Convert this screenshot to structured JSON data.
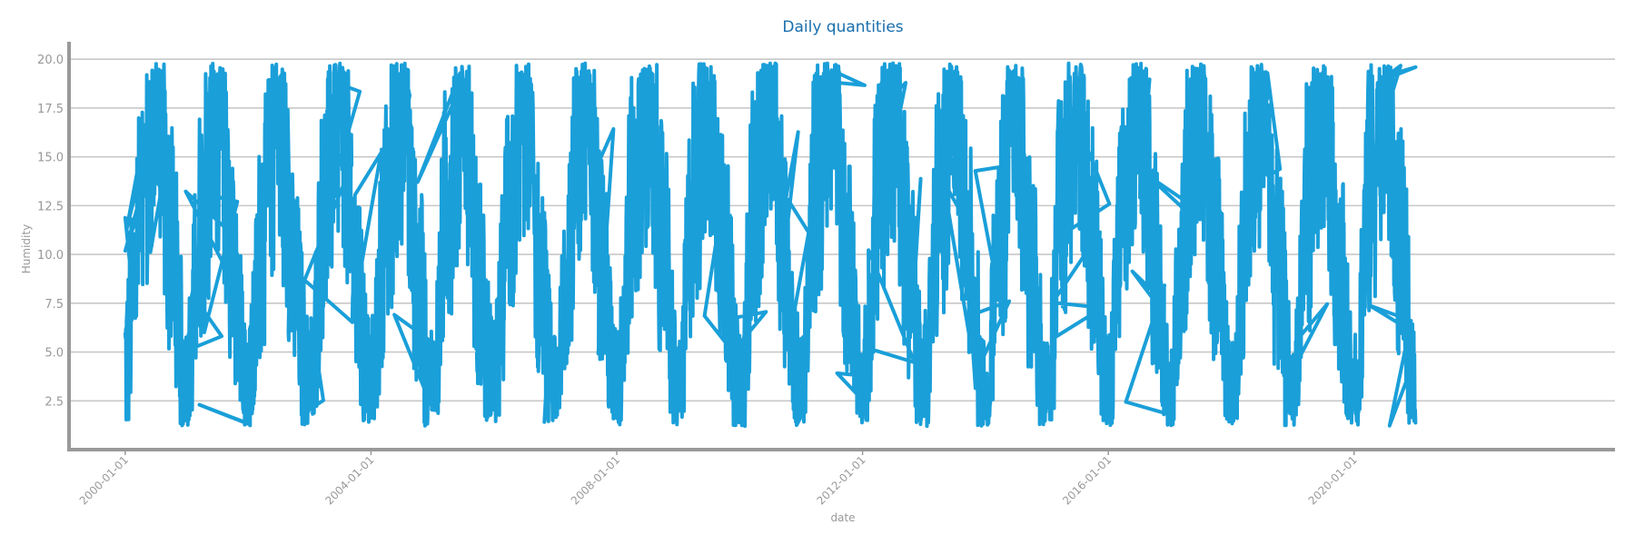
{
  "chart_data": {
    "type": "line",
    "title": "Daily quantities",
    "xlabel": "date",
    "ylabel": "Humidity",
    "xlim": [
      "1999-02-01",
      "2024-03-31"
    ],
    "ylim": [
      0,
      20.8
    ],
    "y_ticks": [
      2.5,
      5.0,
      7.5,
      10.0,
      12.5,
      15.0,
      17.5,
      20.0
    ],
    "y_tick_labels": [
      "2.5",
      "5.0",
      "7.5",
      "10.0",
      "12.5",
      "15.0",
      "17.5",
      "20.0"
    ],
    "x_ticks": [
      "2000-01-01",
      "2004-01-01",
      "2008-01-01",
      "2012-01-01",
      "2016-01-01",
      "2020-01-01"
    ],
    "x_tick_labels": [
      "2000-01-01",
      "2004-01-01",
      "2008-01-01",
      "2012-01-01",
      "2016-01-01",
      "2020-01-01"
    ],
    "grid": "horizontal",
    "data_range": [
      "2000-01-01",
      "2021-01-01"
    ],
    "series": [
      {
        "values_summary": "dense daily series with annual cycle, peaks 17-19.7 mid-year, troughs 1.5-4 near year boundaries",
        "x": [
          "2000-01-01",
          "2000-04-01",
          "2000-07-01",
          "2000-10-01",
          "2001-01-01",
          "2001-04-01",
          "2001-07-01",
          "2001-10-01",
          "2002-01-01",
          "2002-04-01",
          "2002-07-01",
          "2002-10-01",
          "2003-01-01",
          "2003-04-01",
          "2003-07-01",
          "2003-10-01",
          "2004-01-01",
          "2004-04-01",
          "2004-07-01",
          "2004-10-01",
          "2005-01-01",
          "2005-04-01",
          "2005-07-01",
          "2005-10-01",
          "2006-01-01",
          "2006-04-01",
          "2006-07-01",
          "2006-10-01",
          "2007-01-01",
          "2007-04-01",
          "2007-07-01",
          "2007-10-01",
          "2008-01-01",
          "2008-04-01",
          "2008-07-01",
          "2008-10-01",
          "2009-01-01",
          "2009-04-01",
          "2009-07-01",
          "2009-10-01",
          "2010-01-01",
          "2010-04-01",
          "2010-07-01",
          "2010-10-01",
          "2011-01-01",
          "2011-04-01",
          "2011-07-01",
          "2011-10-01",
          "2012-01-01",
          "2012-04-01",
          "2012-07-01",
          "2012-10-01",
          "2013-01-01",
          "2013-04-01",
          "2013-07-01",
          "2013-10-01",
          "2014-01-01",
          "2014-04-01",
          "2014-07-01",
          "2014-10-01",
          "2015-01-01",
          "2015-04-01",
          "2015-07-01",
          "2015-10-01",
          "2016-01-01",
          "2016-04-01",
          "2016-07-01",
          "2016-10-01",
          "2017-01-01",
          "2017-04-01",
          "2017-07-01",
          "2017-10-01",
          "2018-01-01",
          "2018-04-01",
          "2018-07-01",
          "2018-10-01",
          "2019-01-01",
          "2019-04-01",
          "2019-07-01",
          "2019-10-01",
          "2020-01-01",
          "2020-04-01",
          "2020-07-01",
          "2020-10-01",
          "2021-01-01"
        ],
        "y": [
          4.5,
          11.5,
          17.0,
          10.5,
          3.0,
          12.0,
          18.2,
          9.0,
          2.5,
          11.5,
          17.8,
          8.5,
          2.6,
          12.5,
          19.0,
          9.5,
          2.5,
          12.0,
          18.3,
          9.0,
          2.7,
          13.0,
          19.3,
          8.5,
          2.6,
          12.5,
          18.5,
          9.0,
          2.0,
          12.0,
          18.5,
          10.0,
          2.2,
          12.5,
          18.0,
          10.5,
          2.0,
          13.0,
          19.5,
          10.0,
          2.2,
          13.0,
          19.7,
          9.5,
          2.2,
          13.5,
          19.6,
          10.0,
          2.5,
          12.5,
          18.7,
          9.5,
          3.0,
          12.5,
          19.2,
          10.0,
          1.5,
          12.0,
          18.5,
          9.0,
          2.0,
          13.0,
          19.6,
          10.5,
          2.5,
          13.0,
          19.3,
          10.0,
          2.0,
          12.5,
          19.2,
          10.0,
          1.5,
          12.0,
          18.5,
          9.5,
          2.5,
          12.5,
          18.8,
          10.0,
          2.5,
          13.0,
          18.5,
          10.5,
          3.0
        ]
      }
    ],
    "colors": {
      "line": "#1a9fd9",
      "title": "#1a6fad",
      "grid": "#c8c8c8",
      "axis": "#999999",
      "tick_text": "#999999"
    }
  }
}
